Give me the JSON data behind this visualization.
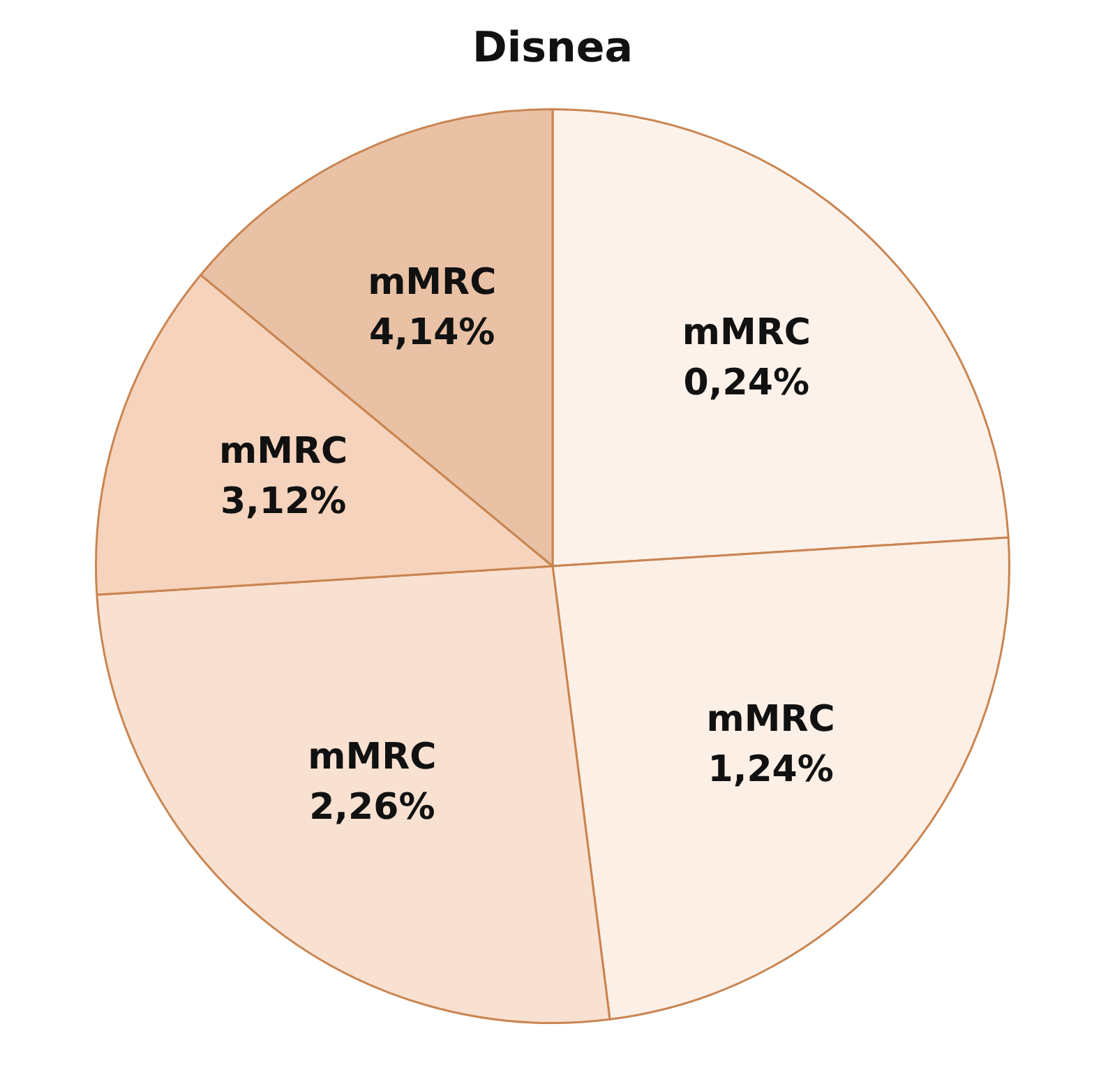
{
  "chart_data": {
    "type": "pie",
    "title": "Disnea",
    "categories": [
      "mMRC 0,24%",
      "mMRC 1,24%",
      "mMRC 2,26%",
      "mMRC 3,12%",
      "mMRC 4,14%"
    ],
    "values": [
      24,
      24,
      26,
      12,
      14
    ],
    "colors": [
      "#fdf2ea",
      "#fcefe5",
      "#f9e1d1",
      "#f6d3bc",
      "#e9c1a5"
    ],
    "legend": false
  }
}
